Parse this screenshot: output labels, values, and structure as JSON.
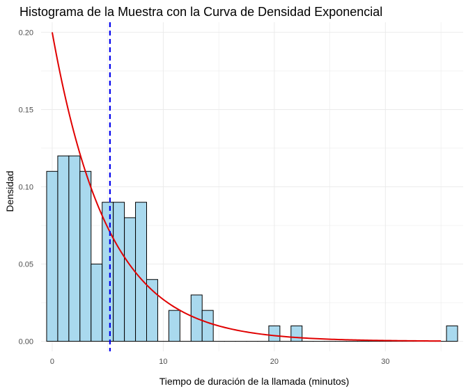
{
  "chart_data": {
    "type": "bar",
    "title": "Histograma de la Muestra con la Curva de Densidad Exponencial",
    "xlabel": "Tiempo de duración de la llamada (minutos)",
    "ylabel": "Densidad",
    "xlim": [
      -1,
      37
    ],
    "ylim": [
      -0.0065,
      0.2065
    ],
    "x_ticks": [
      0,
      10,
      20,
      30
    ],
    "x_tick_labels": [
      "0",
      "10",
      "20",
      "30"
    ],
    "y_ticks": [
      0,
      0.05,
      0.1,
      0.15,
      0.2
    ],
    "y_tick_labels": [
      "0.00",
      "0.05",
      "0.10",
      "0.15",
      "0.20"
    ],
    "grid": true,
    "bin_width": 1,
    "bins": [
      {
        "x": 0,
        "density": 0.11
      },
      {
        "x": 1,
        "density": 0.12
      },
      {
        "x": 2,
        "density": 0.12
      },
      {
        "x": 3,
        "density": 0.11
      },
      {
        "x": 4,
        "density": 0.05
      },
      {
        "x": 5,
        "density": 0.09
      },
      {
        "x": 6,
        "density": 0.09
      },
      {
        "x": 7,
        "density": 0.08
      },
      {
        "x": 8,
        "density": 0.09
      },
      {
        "x": 9,
        "density": 0.04
      },
      {
        "x": 10,
        "density": 0.0
      },
      {
        "x": 11,
        "density": 0.02
      },
      {
        "x": 12,
        "density": 0.0
      },
      {
        "x": 13,
        "density": 0.03
      },
      {
        "x": 14,
        "density": 0.02
      },
      {
        "x": 15,
        "density": 0.0
      },
      {
        "x": 16,
        "density": 0.0
      },
      {
        "x": 17,
        "density": 0.0
      },
      {
        "x": 18,
        "density": 0.0
      },
      {
        "x": 19,
        "density": 0.0
      },
      {
        "x": 20,
        "density": 0.01
      },
      {
        "x": 21,
        "density": 0.0
      },
      {
        "x": 22,
        "density": 0.01
      },
      {
        "x": 23,
        "density": 0.0
      },
      {
        "x": 24,
        "density": 0.0
      },
      {
        "x": 25,
        "density": 0.0
      },
      {
        "x": 26,
        "density": 0.0
      },
      {
        "x": 27,
        "density": 0.0
      },
      {
        "x": 28,
        "density": 0.0
      },
      {
        "x": 29,
        "density": 0.0
      },
      {
        "x": 30,
        "density": 0.0
      },
      {
        "x": 31,
        "density": 0.0
      },
      {
        "x": 32,
        "density": 0.0
      },
      {
        "x": 33,
        "density": 0.0
      },
      {
        "x": 34,
        "density": 0.0
      },
      {
        "x": 35,
        "density": 0.0
      },
      {
        "x": 36,
        "density": 0.01
      }
    ],
    "density_curve": {
      "rate": 0.2,
      "x_range": [
        0,
        35
      ]
    },
    "mean_line": {
      "x": 5.2
    },
    "colors": {
      "bar_fill": "#a9d9ee",
      "bar_stroke": "#000000",
      "curve": "#e00000",
      "mean_line": "#0000ee",
      "grid": "#ebebeb"
    }
  }
}
